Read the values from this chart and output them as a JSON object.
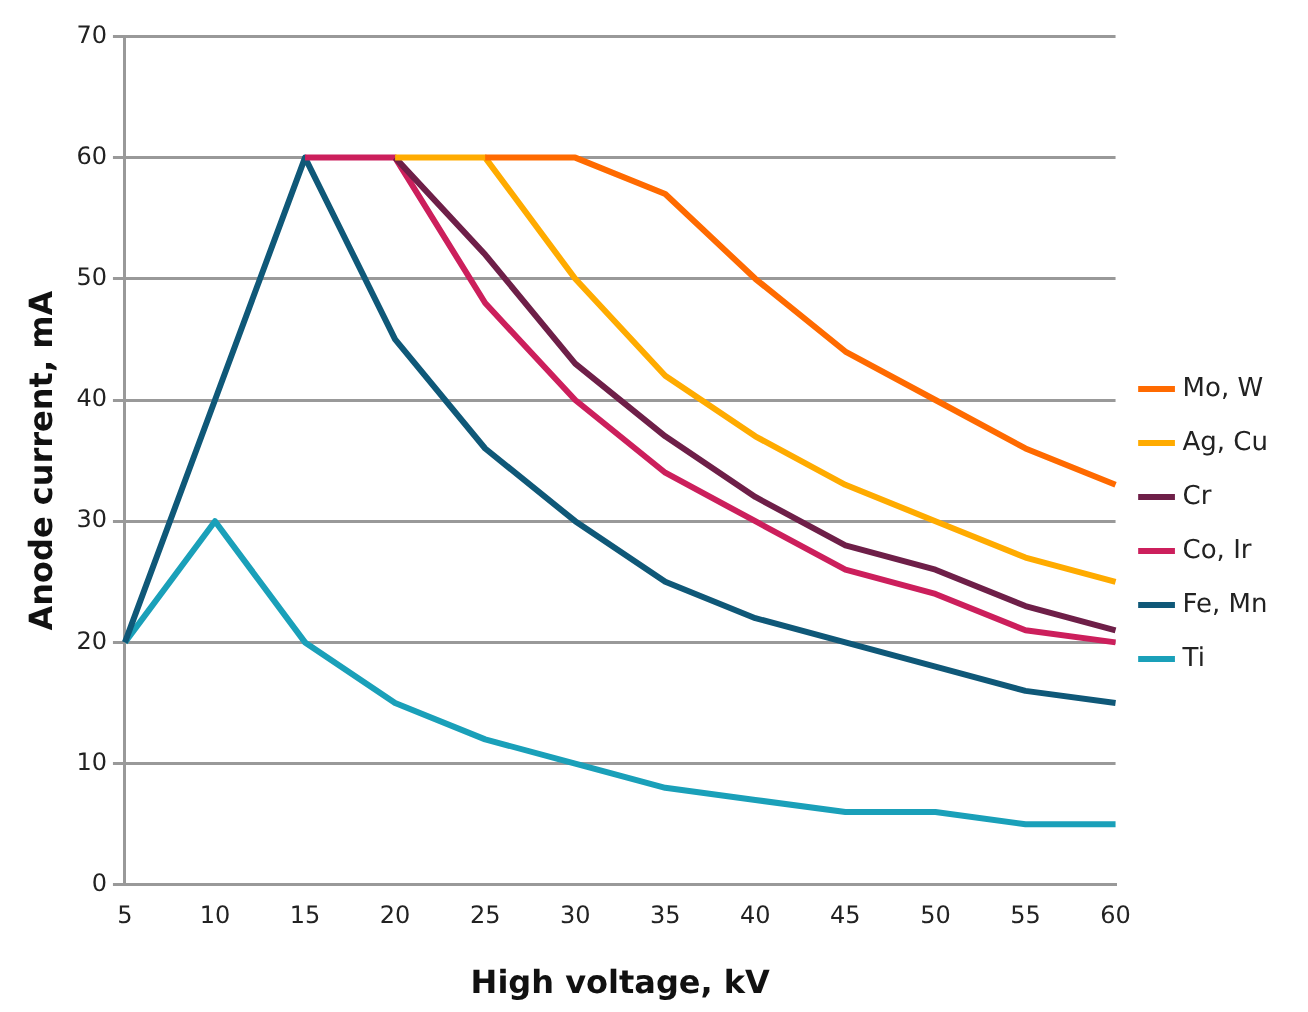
{
  "chart_data": {
    "type": "line",
    "xlabel": "High voltage, kV",
    "ylabel": "Anode current, mA",
    "categories": [
      "5",
      "10",
      "15",
      "20",
      "25",
      "30",
      "35",
      "40",
      "45",
      "50",
      "55",
      "60"
    ],
    "ylim": [
      0,
      70
    ],
    "yticks": [
      0,
      10,
      20,
      30,
      40,
      50,
      60,
      70
    ],
    "grid": "y",
    "legend": "right",
    "marker": "none",
    "line_style": "solid",
    "series": [
      {
        "name": "Mo, W",
        "color": "#ff6a00",
        "values": [
          null,
          null,
          null,
          null,
          60,
          60,
          57,
          50,
          44,
          40,
          36,
          33
        ]
      },
      {
        "name": "Ag, Cu",
        "color": "#ffab00",
        "values": [
          null,
          null,
          null,
          60,
          60,
          50,
          42,
          37,
          33,
          30,
          27,
          25
        ]
      },
      {
        "name": "Cr",
        "color": "#6e1f48",
        "values": [
          null,
          null,
          null,
          60,
          52,
          43,
          37,
          32,
          28,
          26,
          23,
          21
        ]
      },
      {
        "name": "Co, Ir",
        "color": "#cc1f5c",
        "values": [
          null,
          null,
          60,
          60,
          48,
          40,
          34,
          30,
          26,
          24,
          21,
          20
        ]
      },
      {
        "name": "Fe, Mn",
        "color": "#0f5878",
        "values": [
          20,
          40,
          60,
          45,
          36,
          30,
          25,
          22,
          20,
          18,
          16,
          15
        ]
      },
      {
        "name": "Ti",
        "color": "#1aa0b9",
        "values": [
          20,
          30,
          20,
          15,
          12,
          10,
          8,
          7,
          6,
          6,
          5,
          5
        ]
      }
    ]
  }
}
